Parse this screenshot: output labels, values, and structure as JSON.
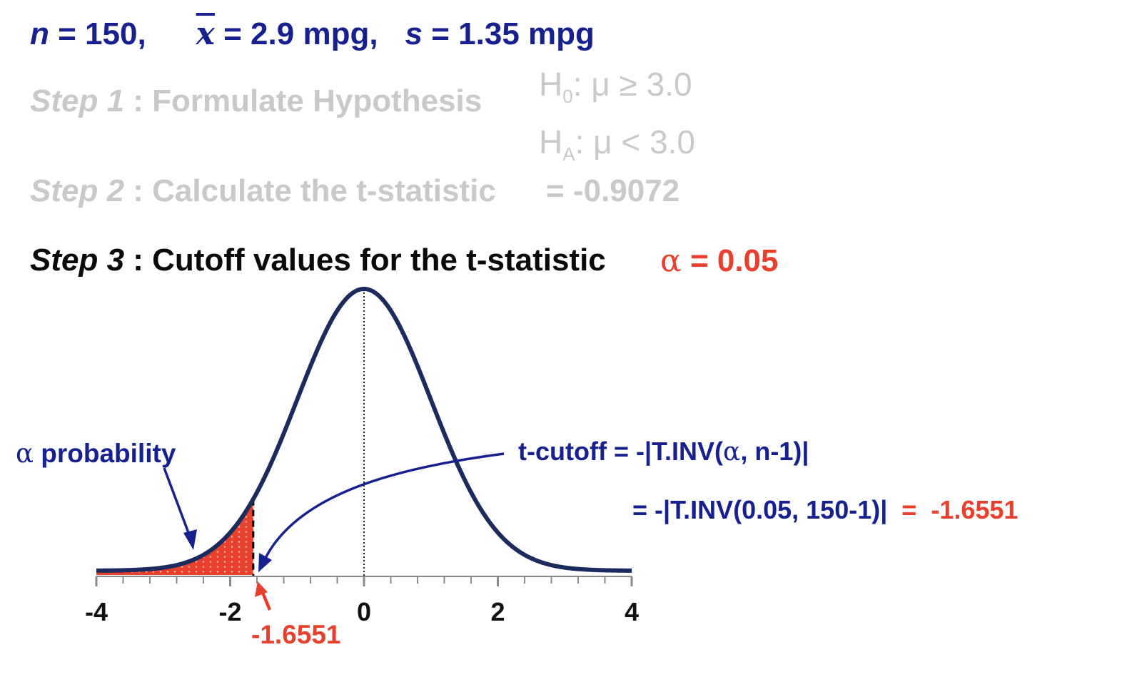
{
  "given": {
    "n_label": "n",
    "n_value": " = 150,",
    "xbar_label": "x",
    "xbar_value": " = 2.9 mpg,",
    "s_label": "s",
    "s_value": " = 1.35 mpg"
  },
  "step1": {
    "step": "Step 1",
    "text": " : Formulate Hypothesis",
    "h0": "H",
    "h0_sub": "0",
    "h0_rel": ":   μ ≥ 3.0",
    "ha": "H",
    "ha_sub": "A",
    "ha_rel": ":   μ < 3.0"
  },
  "step2": {
    "step": "Step 2",
    "text": " : Calculate the t-statistic",
    "value": "= -0.9072"
  },
  "step3": {
    "step": "Step 3",
    "text": " : Cutoff values for the t-statistic",
    "alpha_sym": "α",
    "alpha_value": " = 0.05"
  },
  "annotations": {
    "alpha_prob_sym": "α",
    "alpha_prob_text": " probability",
    "cutoff_label": "-1.6551"
  },
  "formula": {
    "line1_lhs": "t-cutoff  =  -|T.INV(",
    "line1_sym": "α",
    "line1_rhs": ", n-1)|",
    "line2_lhs": "=  -|T.INV(0.05, 150-1)|",
    "line2_eq": "  =  ",
    "line2_result": "-1.6551"
  },
  "chart_data": {
    "type": "area",
    "distribution": "t",
    "xlim": [
      -4,
      4
    ],
    "xticks": [
      -4,
      -2,
      0,
      2,
      4
    ],
    "cutoff": -1.6551,
    "shaded_region": [
      -4,
      -1.6551
    ],
    "colors": {
      "curve": "#1b2b5e",
      "shade": "#e8402c",
      "navy": "#16208f",
      "red": "#e8402c"
    }
  }
}
